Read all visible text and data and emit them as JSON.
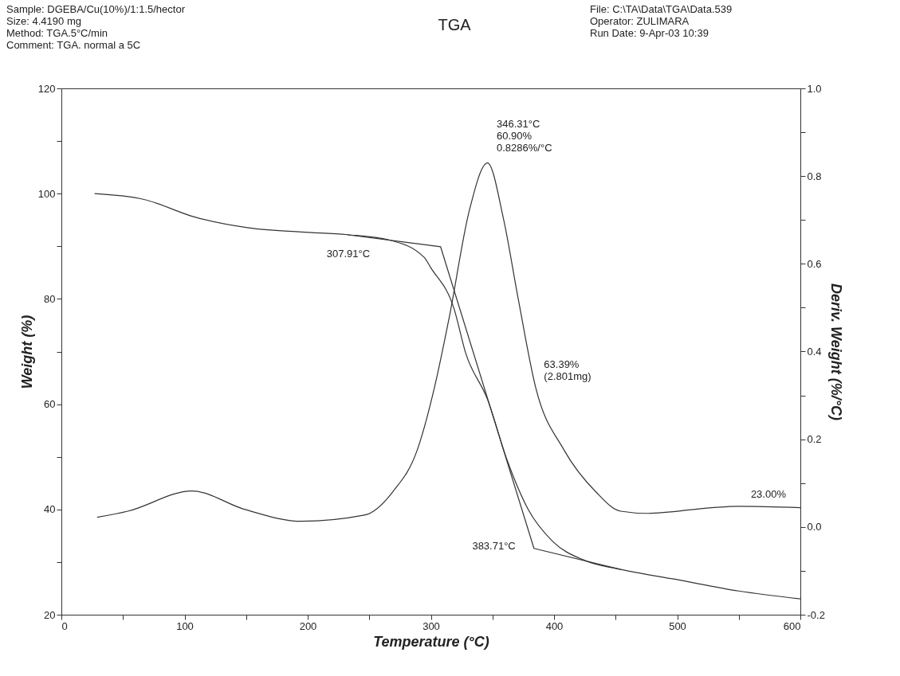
{
  "chart_data": {
    "type": "line",
    "title": "TGA",
    "xlabel": "Temperature (°C)",
    "ylabel": "Weight (%)",
    "y2label": "Deriv. Weight (%/°C)",
    "xlim": [
      0,
      600
    ],
    "xticks": [
      0,
      {
        "value": 50,
        "label": null
      },
      100,
      {
        "value": 150,
        "label": null
      },
      200,
      {
        "value": 250,
        "label": null
      },
      300,
      {
        "value": 350,
        "label": null
      },
      400,
      {
        "value": 450,
        "label": null
      },
      500,
      {
        "value": 550,
        "label": null
      },
      600
    ],
    "ylim": [
      20,
      120
    ],
    "yticks": [
      20,
      {
        "value": 30,
        "label": null
      },
      40,
      {
        "value": 50,
        "label": null
      },
      60,
      {
        "value": 70,
        "label": null
      },
      80,
      {
        "value": 90,
        "label": null
      },
      100,
      {
        "value": 110,
        "label": null
      },
      120
    ],
    "y2lim": [
      -0.2,
      1.0
    ],
    "y2ticks": [
      {
        "value": -0.2,
        "label": "-0.2"
      },
      {
        "value": -0.1,
        "label": null
      },
      {
        "value": 0,
        "label": "0.0"
      },
      {
        "value": 0.1,
        "label": null
      },
      0.2,
      {
        "value": 0.3,
        "label": null
      },
      0.4,
      {
        "value": 0.5,
        "label": null
      },
      0.6,
      {
        "value": 0.7,
        "label": null
      },
      0.8,
      {
        "value": 0.9,
        "label": null
      },
      {
        "value": 1.0,
        "label": "1.0"
      }
    ],
    "line_style": "solid",
    "series": [
      {
        "color": "#333333",
        "x": [
          27,
          67,
          109,
          152,
          195,
          232,
          266,
          294.5,
          300,
          319,
          328,
          346,
          362,
          379,
          399,
          425,
          454,
          499,
          550,
          600
        ],
        "values": [
          100.0,
          98.9,
          95.5,
          93.5,
          92.7,
          92.2,
          91.2,
          87.9,
          85.9,
          78.0,
          69.9,
          60.9,
          49.3,
          40.0,
          33.9,
          30.3,
          28.6,
          26.7,
          24.5,
          23.0
        ]
      },
      {
        "color": "#333333",
        "axis": "y2",
        "x": [
          29,
          54,
          106,
          149,
          195,
          246,
          269,
          289,
          303,
          315,
          331,
          346,
          359,
          371,
          385,
          408,
          434,
          454,
          476,
          528,
          550,
          600
        ],
        "values": [
          0.022,
          0.036,
          0.082,
          0.04,
          0.013,
          0.027,
          0.08,
          0.176,
          0.319,
          0.479,
          0.719,
          0.83,
          0.702,
          0.519,
          0.319,
          0.176,
          0.08,
          0.036,
          0.031,
          0.044,
          0.047,
          0.044
        ]
      },
      {
        "type": "line",
        "color": "#333333",
        "x": [
          232,
          307.91,
          383.71,
          454
        ],
        "values": [
          92.2,
          89.9,
          32.6,
          28.6
        ]
      }
    ],
    "annotations": [
      "Sample: DGEBA/Cu(10%)/1:1.5/hector",
      "Size:  4.4190 mg",
      "Method: TGA.5°C/min",
      "Comment: TGA.   normal a 5C",
      "File: C:\\TA\\Data\\TGA\\Data.539",
      "Operator: ZULIMARA",
      "Run Date: 9-Apr-03  10:39",
      "307.91°C",
      "346.31°C\n60.90%\n0.8286%/°C",
      "63.39%\n(2.801mg)",
      "383.71°C",
      "23.00%"
    ]
  }
}
